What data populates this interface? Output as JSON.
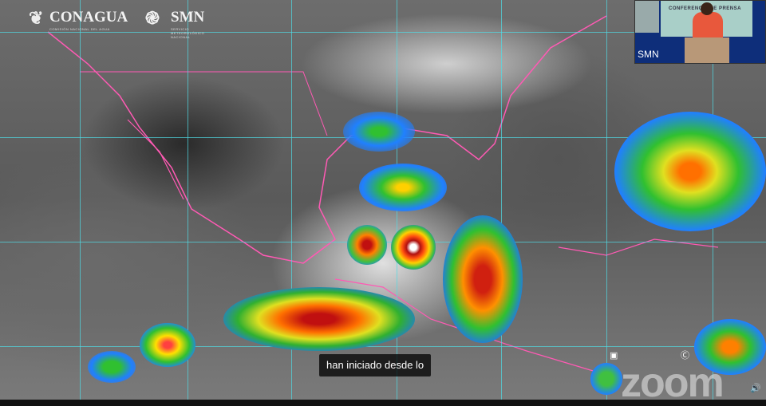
{
  "broadcast": {
    "logo_left": "CONAGUA",
    "logo_left_sub": "COMISIÓN NACIONAL DEL AGUA",
    "logo_right": "SMN",
    "logo_right_sub": "SERVICIO METEOROLÓGICO NACIONAL"
  },
  "video_tile": {
    "banner": "CONFERENCIA DE PRENSA",
    "participant": "SMN"
  },
  "caption": {
    "text": "han iniciado desde lo"
  },
  "watermark": {
    "text": "zoom"
  },
  "colors": {
    "grid": "#50dce6",
    "borders": "#ff5ab4",
    "caption_bg": "#000000"
  }
}
